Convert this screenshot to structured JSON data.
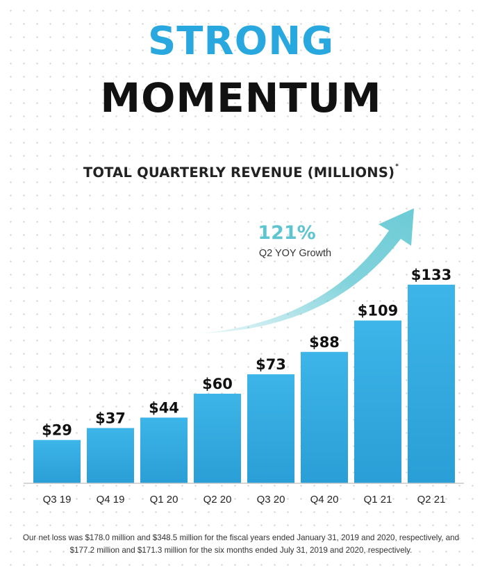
{
  "headline": {
    "line1": "STRONG",
    "line2": "MOMENTUM"
  },
  "annotation": {
    "growth_value": "121%",
    "growth_label": "Q2 YOY Growth"
  },
  "colors": {
    "accent_blue": "#29a8df",
    "bar_top": "#3db5e8",
    "bar_bottom": "#2a9ed6",
    "arrow": "#6ccbd6",
    "growth_text": "#5ec4cf",
    "title_dark": "#111111"
  },
  "chart_data": {
    "type": "bar",
    "title": "TOTAL QUARTERLY REVENUE (MILLIONS)",
    "title_marker": "*",
    "xlabel": "",
    "ylabel": "",
    "categories": [
      "Q3 19",
      "Q4 19",
      "Q1 20",
      "Q2 20",
      "Q3 20",
      "Q4 20",
      "Q1 21",
      "Q2 21"
    ],
    "values": [
      29,
      37,
      44,
      60,
      73,
      88,
      109,
      133
    ],
    "data_labels": [
      "$29",
      "$37",
      "$44",
      "$60",
      "$73",
      "$88",
      "$109",
      "$133"
    ],
    "unit": "$ millions",
    "ylim": [
      0,
      133
    ],
    "grid": false,
    "legend": "none"
  },
  "footnote": "Our net loss was $178.0 million and $348.5 million for the fiscal years ended January 31, 2019 and 2020, respectively, and $177.2 million and $171.3 million for the six months ended July 31, 2019 and 2020, respectively."
}
